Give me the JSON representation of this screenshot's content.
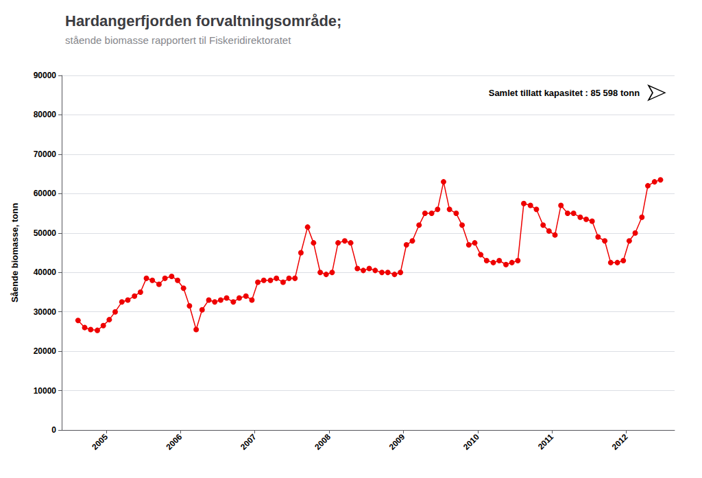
{
  "chart_data": {
    "type": "line",
    "title": "Hardangerfjorden forvaltningsområde;",
    "subtitle": "stående biomasse rapportert til Fiskeridirektoratet",
    "y_label": "Sående biomasse, tonn",
    "annotation": {
      "text": "Samlet tillatt kapasitet : 85 598 tonn",
      "y": 85598
    },
    "x": [
      2004.62,
      2004.71,
      2004.79,
      2004.88,
      2004.96,
      2005.04,
      2005.12,
      2005.21,
      2005.29,
      2005.38,
      2005.46,
      2005.54,
      2005.62,
      2005.71,
      2005.79,
      2005.88,
      2005.96,
      2006.04,
      2006.12,
      2006.21,
      2006.29,
      2006.38,
      2006.46,
      2006.54,
      2006.62,
      2006.71,
      2006.79,
      2006.88,
      2006.96,
      2007.04,
      2007.12,
      2007.21,
      2007.29,
      2007.38,
      2007.46,
      2007.54,
      2007.62,
      2007.71,
      2007.79,
      2007.88,
      2007.96,
      2008.04,
      2008.12,
      2008.21,
      2008.29,
      2008.38,
      2008.46,
      2008.54,
      2008.62,
      2008.71,
      2008.79,
      2008.88,
      2008.96,
      2009.04,
      2009.12,
      2009.21,
      2009.29,
      2009.38,
      2009.46,
      2009.54,
      2009.62,
      2009.71,
      2009.79,
      2009.88,
      2009.96,
      2010.04,
      2010.12,
      2010.21,
      2010.29,
      2010.38,
      2010.46,
      2010.54,
      2010.62,
      2010.71,
      2010.79,
      2010.88,
      2010.96,
      2011.04,
      2011.12,
      2011.21,
      2011.29,
      2011.38,
      2011.46,
      2011.54,
      2011.62,
      2011.71,
      2011.79,
      2011.88,
      2011.96,
      2012.04,
      2012.12,
      2012.21,
      2012.29,
      2012.38,
      2012.46
    ],
    "values": [
      27800,
      26000,
      25500,
      25300,
      26500,
      28000,
      30000,
      32500,
      33000,
      34000,
      35000,
      38500,
      38000,
      37000,
      38500,
      39000,
      38000,
      36000,
      31500,
      25500,
      30500,
      33000,
      32500,
      33000,
      33500,
      32500,
      33500,
      34000,
      33000,
      37500,
      38000,
      38000,
      38500,
      37500,
      38500,
      38500,
      45000,
      51500,
      47500,
      40000,
      39500,
      40000,
      47500,
      48000,
      47500,
      41000,
      40500,
      41000,
      40500,
      40000,
      40000,
      39500,
      40000,
      47000,
      48000,
      52000,
      55000,
      55000,
      56000,
      63000,
      56000,
      55000,
      52000,
      47000,
      47500,
      44500,
      43000,
      42500,
      43000,
      42000,
      42500,
      43000,
      57500,
      57000,
      56000,
      52000,
      50500,
      49500,
      57000,
      55000,
      55000,
      54000,
      53500,
      53000,
      49000,
      48000,
      42500,
      42500,
      43000,
      48000,
      50000,
      54000,
      62000,
      63000,
      63500
    ],
    "color": "#ee0000",
    "marker": "circle",
    "xlim": [
      2004.4,
      2012.65
    ],
    "xticks": [
      2005,
      2006,
      2007,
      2008,
      2009,
      2010,
      2011,
      2012
    ],
    "ylim": [
      0,
      90000
    ],
    "yticks": [
      0,
      10000,
      20000,
      30000,
      40000,
      50000,
      60000,
      70000,
      80000,
      90000
    ],
    "grid": true
  }
}
